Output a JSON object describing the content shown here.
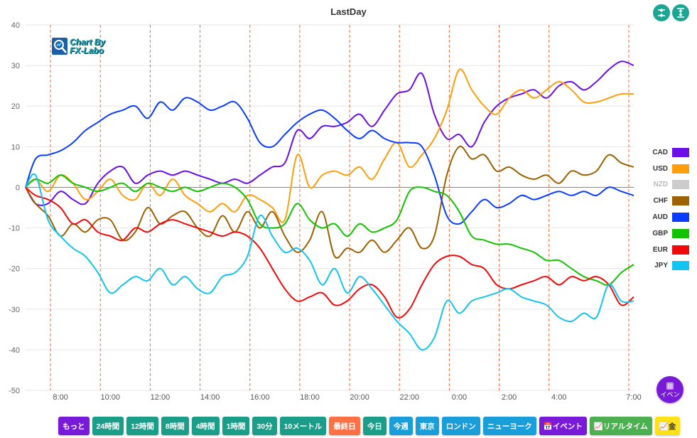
{
  "title": "LastDay",
  "logo": {
    "line1": "Chart By",
    "line2": "FX-Labo"
  },
  "top_buttons": [
    {
      "name": "collapse-icon",
      "glyph": "⇟"
    },
    {
      "name": "expand-icon",
      "glyph": "↧"
    }
  ],
  "chart_data": {
    "type": "line",
    "title": "LastDay",
    "ylim": [
      -50,
      40
    ],
    "yticks": [
      40,
      30,
      20,
      10,
      0,
      -10,
      -20,
      -30,
      -40,
      -50
    ],
    "xlim_hours": [
      6.6,
      31.0
    ],
    "xticks": [
      "8:00",
      "10:00",
      "12:00",
      "14:00",
      "16:00",
      "18:00",
      "20:00",
      "22:00",
      "0:00",
      "2:00",
      "4:00",
      "7:00"
    ],
    "xtick_hours": [
      8,
      10,
      12,
      14,
      16,
      18,
      20,
      22,
      24,
      26,
      28,
      31
    ],
    "vlines_hours": [
      7.6,
      9.6,
      11.6,
      13.6,
      15.6,
      17.6,
      19.6,
      21.6,
      23.6,
      25.6,
      27.6,
      30.8
    ],
    "grid": true,
    "legend_position": "right",
    "series": [
      {
        "name": "CAD",
        "color": "#6a0fe6",
        "visible": true,
        "x": [
          6.6,
          7.0,
          7.5,
          8.0,
          8.5,
          9.0,
          9.5,
          10.0,
          10.5,
          11.0,
          11.5,
          12.0,
          12.5,
          13.0,
          13.5,
          14.0,
          14.5,
          15.0,
          15.5,
          16.0,
          16.5,
          17.0,
          17.5,
          18.0,
          18.5,
          19.0,
          19.5,
          20.0,
          20.5,
          21.0,
          21.5,
          22.0,
          22.5,
          23.0,
          23.5,
          24.0,
          24.5,
          25.0,
          25.5,
          26.0,
          26.5,
          27.0,
          27.5,
          28.0,
          28.5,
          29.0,
          29.5,
          30.0,
          30.5,
          31.0
        ],
        "y": [
          0,
          -4,
          -4,
          -1,
          -3,
          -4,
          1,
          4,
          5,
          1,
          3,
          4,
          3,
          4,
          3,
          2,
          1,
          2,
          1,
          3,
          5,
          6,
          14,
          12,
          15,
          15,
          16,
          18,
          15,
          19,
          23,
          24,
          28,
          18,
          12,
          13,
          10,
          16,
          20,
          22,
          23,
          24,
          22,
          25,
          26,
          24,
          26,
          29,
          31,
          30
        ]
      },
      {
        "name": "USD",
        "color": "#ff9d0a",
        "visible": true,
        "x": [
          6.6,
          7.0,
          7.5,
          8.0,
          8.5,
          9.0,
          9.5,
          10.0,
          10.5,
          11.0,
          11.5,
          12.0,
          12.5,
          13.0,
          13.5,
          14.0,
          14.5,
          15.0,
          15.5,
          16.0,
          16.5,
          17.0,
          17.5,
          18.0,
          18.5,
          19.0,
          19.5,
          20.0,
          20.5,
          21.0,
          21.5,
          22.0,
          22.5,
          23.0,
          23.5,
          24.0,
          24.5,
          25.0,
          25.5,
          26.0,
          26.5,
          27.0,
          27.5,
          28.0,
          28.5,
          29.0,
          29.5,
          30.0,
          30.5,
          31.0
        ],
        "y": [
          0,
          2,
          -1,
          3,
          1,
          -3,
          -1,
          2,
          -2,
          -3,
          1,
          -2,
          2,
          -2,
          -4,
          -6,
          -4,
          -6,
          -2,
          -3,
          -5,
          -8,
          8,
          0,
          3,
          4,
          3,
          5,
          2,
          7,
          11,
          5,
          8,
          12,
          19,
          29,
          24,
          20,
          18,
          22,
          24,
          22,
          24,
          26,
          24,
          21,
          21,
          22,
          23,
          23
        ]
      },
      {
        "name": "CHF",
        "color": "#9c6100",
        "visible": true,
        "x": [
          6.6,
          7.0,
          7.5,
          8.0,
          8.5,
          9.0,
          9.5,
          10.0,
          10.5,
          11.0,
          11.5,
          12.0,
          12.5,
          13.0,
          13.5,
          14.0,
          14.5,
          15.0,
          15.5,
          16.0,
          16.5,
          17.0,
          17.5,
          18.0,
          18.5,
          19.0,
          19.5,
          20.0,
          20.5,
          21.0,
          21.5,
          22.0,
          22.5,
          23.0,
          23.5,
          24.0,
          24.5,
          25.0,
          25.5,
          26.0,
          26.5,
          27.0,
          27.5,
          28.0,
          28.5,
          29.0,
          29.5,
          30.0,
          30.5,
          31.0
        ],
        "y": [
          0,
          -4,
          -7,
          -12,
          -9,
          -11,
          -8,
          -8,
          -13,
          -11,
          -5,
          -9,
          -7,
          -6,
          -10,
          -12,
          -7,
          -11,
          -6,
          -10,
          -6,
          -12,
          -16,
          -13,
          -6,
          -17,
          -15,
          -16,
          -13,
          -16,
          -13,
          -10,
          -15,
          -12,
          3,
          10,
          7,
          8,
          4,
          5,
          3,
          2,
          3,
          1,
          4,
          3,
          4,
          8,
          6,
          5
        ]
      },
      {
        "name": "AUD",
        "color": "#0a3cff",
        "visible": true,
        "x": [
          6.6,
          7.0,
          7.5,
          8.0,
          8.5,
          9.0,
          9.5,
          10.0,
          10.5,
          11.0,
          11.5,
          12.0,
          12.5,
          13.0,
          13.5,
          14.0,
          14.5,
          15.0,
          15.5,
          16.0,
          16.5,
          17.0,
          17.5,
          18.0,
          18.5,
          19.0,
          19.5,
          20.0,
          20.5,
          21.0,
          21.5,
          22.0,
          22.5,
          23.0,
          23.5,
          24.0,
          24.5,
          25.0,
          25.5,
          26.0,
          26.5,
          27.0,
          27.5,
          28.0,
          28.5,
          29.0,
          29.5,
          30.0,
          30.5,
          31.0
        ],
        "y": [
          0,
          7,
          8,
          9,
          11,
          14,
          16,
          18,
          19,
          20,
          17,
          21,
          19,
          22,
          21,
          19,
          20,
          21,
          17,
          11,
          10,
          13,
          16,
          18,
          19,
          17,
          14,
          12,
          14,
          12,
          11,
          11,
          10,
          3,
          -7,
          -9,
          -6,
          -3,
          -5,
          -4,
          -2,
          -3,
          -2,
          -1,
          -2,
          -1,
          -2,
          0,
          -1,
          -2
        ]
      },
      {
        "name": "GBP",
        "color": "#12c400",
        "visible": true,
        "x": [
          6.6,
          7.0,
          7.5,
          8.0,
          8.5,
          9.0,
          9.5,
          10.0,
          10.5,
          11.0,
          11.5,
          12.0,
          12.5,
          13.0,
          13.5,
          14.0,
          14.5,
          15.0,
          15.5,
          16.0,
          16.5,
          17.0,
          17.5,
          18.0,
          18.5,
          19.0,
          19.5,
          20.0,
          20.5,
          21.0,
          21.5,
          22.0,
          22.5,
          23.0,
          23.5,
          24.0,
          24.5,
          25.0,
          25.5,
          26.0,
          26.5,
          27.0,
          27.5,
          28.0,
          28.5,
          29.0,
          29.5,
          30.0,
          30.5,
          31.0
        ],
        "y": [
          0,
          2,
          1,
          3,
          1,
          0,
          -1,
          0,
          1,
          -1,
          1,
          0,
          -1,
          0,
          -1,
          0,
          1,
          0,
          -3,
          -9,
          -10,
          -9,
          -4,
          -8,
          -10,
          -9,
          -12,
          -9,
          -11,
          -10,
          -8,
          -1,
          0,
          -1,
          -2,
          -6,
          -12,
          -13,
          -14,
          -14,
          -15,
          -16,
          -18,
          -18,
          -20,
          -22,
          -23,
          -24,
          -21,
          -19
        ]
      },
      {
        "name": "EUR",
        "color": "#f00a0a",
        "visible": true,
        "x": [
          6.6,
          7.0,
          7.5,
          8.0,
          8.5,
          9.0,
          9.5,
          10.0,
          10.5,
          11.0,
          11.5,
          12.0,
          12.5,
          13.0,
          13.5,
          14.0,
          14.5,
          15.0,
          15.5,
          16.0,
          16.5,
          17.0,
          17.5,
          18.0,
          18.5,
          19.0,
          19.5,
          20.0,
          20.5,
          21.0,
          21.5,
          22.0,
          22.5,
          23.0,
          23.5,
          24.0,
          24.5,
          25.0,
          25.5,
          26.0,
          26.5,
          27.0,
          27.5,
          28.0,
          28.5,
          29.0,
          29.5,
          30.0,
          30.5,
          31.0
        ],
        "y": [
          0,
          -2,
          -3,
          -5,
          -9,
          -8,
          -11,
          -12,
          -13,
          -10,
          -11,
          -9,
          -8,
          -9,
          -10,
          -11,
          -12,
          -11,
          -12,
          -15,
          -20,
          -25,
          -28,
          -27,
          -26,
          -29,
          -28,
          -25,
          -24,
          -27,
          -32,
          -30,
          -24,
          -19,
          -17,
          -17,
          -19,
          -20,
          -24,
          -25,
          -24,
          -23,
          -22,
          -24,
          -22,
          -23,
          -22,
          -24,
          -29,
          -27
        ]
      },
      {
        "name": "JPY",
        "color": "#12c4f0",
        "visible": true,
        "x": [
          6.6,
          7.0,
          7.5,
          8.0,
          8.5,
          9.0,
          9.5,
          10.0,
          10.5,
          11.0,
          11.5,
          12.0,
          12.5,
          13.0,
          13.5,
          14.0,
          14.5,
          15.0,
          15.5,
          16.0,
          16.5,
          17.0,
          17.5,
          18.0,
          18.5,
          19.0,
          19.5,
          20.0,
          20.5,
          21.0,
          21.5,
          22.0,
          22.5,
          23.0,
          23.5,
          24.0,
          24.5,
          25.0,
          25.5,
          26.0,
          26.5,
          27.0,
          27.5,
          28.0,
          28.5,
          29.0,
          29.5,
          30.0,
          30.5,
          31.0
        ],
        "y": [
          0,
          3,
          -8,
          -12,
          -15,
          -17,
          -21,
          -26,
          -24,
          -22,
          -23,
          -20,
          -24,
          -22,
          -25,
          -26,
          -22,
          -21,
          -17,
          -7,
          -12,
          -16,
          -15,
          -18,
          -24,
          -20,
          -26,
          -22,
          -25,
          -29,
          -33,
          -36,
          -40,
          -37,
          -28,
          -31,
          -28,
          -27,
          -26,
          -25,
          -27,
          -28,
          -29,
          -32,
          -33,
          -31,
          -32,
          -24,
          -28,
          -28
        ]
      }
    ]
  },
  "legend": [
    {
      "label": "CAD",
      "color": "#6a0fe6",
      "disabled": false
    },
    {
      "label": "USD",
      "color": "#ff9d0a",
      "disabled": false
    },
    {
      "label": "NZD",
      "color": "#cccccc",
      "disabled": true
    },
    {
      "label": "CHF",
      "color": "#9c6100",
      "disabled": false
    },
    {
      "label": "AUD",
      "color": "#0a3cff",
      "disabled": false
    },
    {
      "label": "GBP",
      "color": "#12c400",
      "disabled": false
    },
    {
      "label": "EUR",
      "color": "#f00a0a",
      "disabled": false
    },
    {
      "label": "JPY",
      "color": "#12c4f0",
      "disabled": false
    }
  ],
  "event_fab": {
    "icon": "calendar-icon",
    "label": "イベン"
  },
  "toolbar": [
    {
      "label": "もっと",
      "color": "#7a1ad9",
      "name": "more-button"
    },
    {
      "label": "24時間",
      "color": "#1a9e8a",
      "name": "24h-button"
    },
    {
      "label": "12時間",
      "color": "#1a9e8a",
      "name": "12h-button"
    },
    {
      "label": "8時間",
      "color": "#1a9e8a",
      "name": "8h-button"
    },
    {
      "label": "4時間",
      "color": "#1a9e8a",
      "name": "4h-button"
    },
    {
      "label": "1時間",
      "color": "#1a9e8a",
      "name": "1h-button"
    },
    {
      "label": "30分",
      "color": "#1a9e8a",
      "name": "30min-button"
    },
    {
      "label": "10メートル",
      "color": "#1a9e8a",
      "name": "10m-button"
    },
    {
      "label": "最終日",
      "color": "#ff7043",
      "name": "last-day-button"
    },
    {
      "label": "今日",
      "color": "#1a9e8a",
      "name": "today-button"
    },
    {
      "label": "今週",
      "color": "#1a9ed9",
      "name": "this-week-button"
    },
    {
      "label": "東京",
      "color": "#1a9ed9",
      "name": "tokyo-button"
    },
    {
      "label": "ロンドン",
      "color": "#1a9ed9",
      "name": "london-button"
    },
    {
      "label": "ニューヨーク",
      "color": "#1a9ed9",
      "name": "newyork-button"
    },
    {
      "label": "📅イベント",
      "color": "#7a1ad9",
      "name": "event-button"
    },
    {
      "label": "📈リアルタイム",
      "color": "#4caf50",
      "name": "realtime-button"
    },
    {
      "label": "📈金",
      "color": "#ffe11a",
      "name": "gold-button",
      "text_color": "#333333"
    }
  ]
}
